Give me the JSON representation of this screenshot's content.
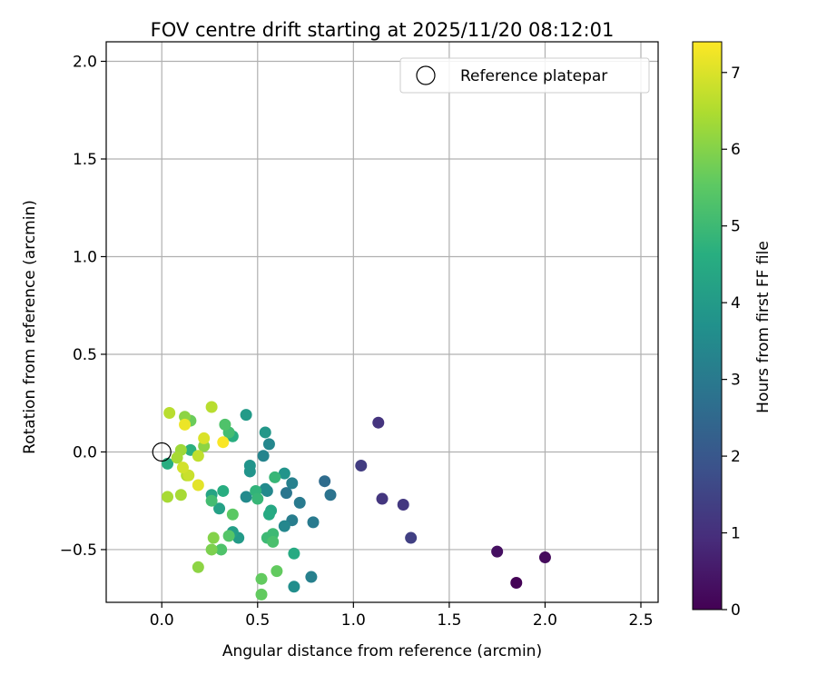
{
  "chart_data": {
    "type": "scatter",
    "title": "FOV centre drift starting at 2025/11/20 08:12:01",
    "xlabel": "Angular distance from reference (arcmin)",
    "ylabel": "Rotation from reference (arcmin)",
    "xlim": [
      -0.29,
      2.59
    ],
    "ylim": [
      -0.77,
      2.1
    ],
    "xticks": [
      0.0,
      0.5,
      1.0,
      1.5,
      2.0,
      2.5
    ],
    "xtick_labels": [
      "0.0",
      "0.5",
      "1.0",
      "1.5",
      "2.0",
      "2.5"
    ],
    "yticks": [
      -0.5,
      0.0,
      0.5,
      1.0,
      1.5,
      2.0
    ],
    "ytick_labels": [
      "−0.5",
      "0.0",
      "0.5",
      "1.0",
      "1.5",
      "2.0"
    ],
    "grid": true,
    "legend": {
      "position": "top-right",
      "label": "Reference platepar"
    },
    "reference_point": {
      "x": 0.0,
      "y": 0.0
    },
    "colorbar": {
      "label": "Hours from first FF file",
      "colormap": "viridis",
      "range": [
        0,
        7.4
      ],
      "ticks": [
        0,
        1,
        2,
        3,
        4,
        5,
        6,
        7
      ],
      "tick_labels": [
        "0",
        "1",
        "2",
        "3",
        "4",
        "5",
        "6",
        "7"
      ]
    },
    "points": [
      {
        "x": 1.85,
        "y": -0.67,
        "t": 0.05
      },
      {
        "x": 2.0,
        "y": -0.54,
        "t": 0.2
      },
      {
        "x": 1.75,
        "y": -0.51,
        "t": 0.3
      },
      {
        "x": 1.13,
        "y": 0.15,
        "t": 1.1
      },
      {
        "x": 1.04,
        "y": -0.07,
        "t": 1.3
      },
      {
        "x": 1.15,
        "y": -0.24,
        "t": 1.15
      },
      {
        "x": 1.26,
        "y": -0.27,
        "t": 1.2
      },
      {
        "x": 1.3,
        "y": -0.44,
        "t": 1.4
      },
      {
        "x": 0.85,
        "y": -0.15,
        "t": 2.6
      },
      {
        "x": 0.88,
        "y": -0.22,
        "t": 2.8
      },
      {
        "x": 0.72,
        "y": -0.26,
        "t": 3.0
      },
      {
        "x": 0.68,
        "y": -0.35,
        "t": 3.1
      },
      {
        "x": 0.79,
        "y": -0.36,
        "t": 3.0
      },
      {
        "x": 0.78,
        "y": -0.64,
        "t": 3.2
      },
      {
        "x": 0.65,
        "y": -0.21,
        "t": 2.9
      },
      {
        "x": 0.68,
        "y": -0.16,
        "t": 3.2
      },
      {
        "x": 0.64,
        "y": -0.38,
        "t": 3.4
      },
      {
        "x": 0.53,
        "y": -0.02,
        "t": 3.3
      },
      {
        "x": 0.56,
        "y": 0.04,
        "t": 3.4
      },
      {
        "x": 0.55,
        "y": -0.2,
        "t": 3.4
      },
      {
        "x": 0.54,
        "y": -0.19,
        "t": 3.5
      },
      {
        "x": 0.44,
        "y": -0.23,
        "t": 3.5
      },
      {
        "x": 0.69,
        "y": -0.69,
        "t": 3.6
      },
      {
        "x": 0.64,
        "y": -0.11,
        "t": 3.8
      },
      {
        "x": 0.54,
        "y": 0.1,
        "t": 3.9
      },
      {
        "x": 0.46,
        "y": -0.07,
        "t": 3.8
      },
      {
        "x": 0.46,
        "y": -0.1,
        "t": 3.8
      },
      {
        "x": 0.44,
        "y": 0.19,
        "t": 4.0
      },
      {
        "x": 0.4,
        "y": -0.44,
        "t": 4.0
      },
      {
        "x": 0.37,
        "y": -0.41,
        "t": 4.1
      },
      {
        "x": 0.3,
        "y": -0.29,
        "t": 4.2
      },
      {
        "x": 0.26,
        "y": -0.22,
        "t": 4.3
      },
      {
        "x": 0.57,
        "y": -0.3,
        "t": 4.4
      },
      {
        "x": 0.56,
        "y": -0.32,
        "t": 4.5
      },
      {
        "x": 0.69,
        "y": -0.52,
        "t": 4.5
      },
      {
        "x": 0.37,
        "y": 0.08,
        "t": 4.6
      },
      {
        "x": 0.32,
        "y": -0.2,
        "t": 4.6
      },
      {
        "x": 0.49,
        "y": -0.2,
        "t": 4.8
      },
      {
        "x": 0.5,
        "y": -0.24,
        "t": 4.9
      },
      {
        "x": 0.59,
        "y": -0.13,
        "t": 4.9
      },
      {
        "x": 0.55,
        "y": -0.44,
        "t": 5.0
      },
      {
        "x": 0.58,
        "y": -0.42,
        "t": 5.0
      },
      {
        "x": 0.58,
        "y": -0.46,
        "t": 5.2
      },
      {
        "x": 0.35,
        "y": 0.1,
        "t": 5.1
      },
      {
        "x": 0.33,
        "y": 0.14,
        "t": 5.3
      },
      {
        "x": 0.15,
        "y": 0.01,
        "t": 4.7
      },
      {
        "x": 0.03,
        "y": -0.06,
        "t": 4.6
      },
      {
        "x": 0.26,
        "y": -0.25,
        "t": 5.1
      },
      {
        "x": 0.31,
        "y": -0.5,
        "t": 5.3
      },
      {
        "x": 0.35,
        "y": -0.43,
        "t": 5.4
      },
      {
        "x": 0.37,
        "y": -0.32,
        "t": 5.5
      },
      {
        "x": 0.6,
        "y": -0.61,
        "t": 5.6
      },
      {
        "x": 0.52,
        "y": -0.65,
        "t": 5.6
      },
      {
        "x": 0.52,
        "y": -0.73,
        "t": 5.6
      },
      {
        "x": 0.15,
        "y": 0.16,
        "t": 5.7
      },
      {
        "x": 0.26,
        "y": -0.5,
        "t": 5.9
      },
      {
        "x": 0.27,
        "y": -0.44,
        "t": 6.0
      },
      {
        "x": 0.19,
        "y": -0.59,
        "t": 6.1
      },
      {
        "x": 0.12,
        "y": 0.18,
        "t": 6.1
      },
      {
        "x": 0.22,
        "y": 0.03,
        "t": 6.1
      },
      {
        "x": 0.1,
        "y": 0.01,
        "t": 6.3
      },
      {
        "x": 0.08,
        "y": -0.03,
        "t": 6.4
      },
      {
        "x": 0.03,
        "y": -0.23,
        "t": 6.4
      },
      {
        "x": 0.1,
        "y": -0.22,
        "t": 6.4
      },
      {
        "x": 0.04,
        "y": 0.2,
        "t": 6.6
      },
      {
        "x": 0.26,
        "y": 0.23,
        "t": 6.6
      },
      {
        "x": 0.19,
        "y": -0.02,
        "t": 6.7
      },
      {
        "x": 0.13,
        "y": -0.12,
        "t": 6.5
      },
      {
        "x": 0.14,
        "y": -0.12,
        "t": 6.8
      },
      {
        "x": 0.11,
        "y": -0.08,
        "t": 6.9
      },
      {
        "x": 0.22,
        "y": 0.07,
        "t": 7.0
      },
      {
        "x": 0.12,
        "y": 0.14,
        "t": 7.2
      },
      {
        "x": 0.19,
        "y": -0.17,
        "t": 7.1
      },
      {
        "x": 0.32,
        "y": 0.05,
        "t": 7.35
      }
    ]
  }
}
